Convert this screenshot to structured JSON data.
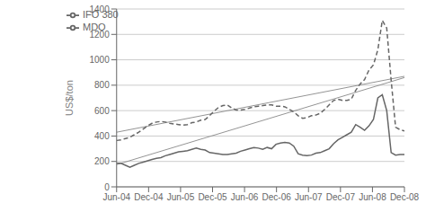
{
  "chart_data": {
    "type": "line",
    "title": "",
    "ylabel": "US$/ton",
    "xlim": [
      0,
      54
    ],
    "xticks": [
      {
        "value": 0,
        "label": "Jun-04"
      },
      {
        "value": 6,
        "label": "Dec-04"
      },
      {
        "value": 12,
        "label": "Jun-05"
      },
      {
        "value": 18,
        "label": "Dec-05"
      },
      {
        "value": 24,
        "label": "Jun-06"
      },
      {
        "value": 30,
        "label": "Dec-06"
      },
      {
        "value": 36,
        "label": "Jun-07"
      },
      {
        "value": 42,
        "label": "Dec-07"
      },
      {
        "value": 48,
        "label": "Jun-08"
      },
      {
        "value": 54,
        "label": "Dec-08"
      }
    ],
    "ylim": [
      0,
      1400
    ],
    "yticks": [
      0,
      200,
      400,
      600,
      800,
      1000,
      1200,
      1400
    ],
    "grid": true,
    "legend": "upper left",
    "series": [
      {
        "x": [
          0,
          54
        ],
        "values": [
          175,
          860
        ],
        "color": "#888888",
        "line_style": "solid"
      },
      {
        "x": [
          0,
          54
        ],
        "values": [
          430,
          870
        ],
        "color": "#888888",
        "line_style": "solid"
      },
      {
        "name": "IFO 380",
        "color": "#666666",
        "line_style": "solid",
        "x": [
          0,
          0.830769,
          1.661538,
          2.492308,
          3.323077,
          4.153846,
          4.984615,
          5.815385,
          6.646154,
          7.476923,
          8.307692,
          9.138462,
          9.969231,
          10.8,
          11.630769,
          12.461538,
          13.292308,
          14.123077,
          14.953846,
          15.784615,
          16.615385,
          17.446154,
          18.276923,
          19.107692,
          19.938462,
          20.769231,
          21.6,
          22.430769,
          23.261538,
          24.092308,
          24.923077,
          25.753846,
          26.584615,
          27.415385,
          28.246154,
          29.076923,
          29.907692,
          30.738462,
          31.569231,
          32.4,
          33.230769,
          34.061538,
          34.892308,
          35.723077,
          36.553846,
          37.384615,
          38.215385,
          39.046154,
          39.876923,
          40.707692,
          41.538462,
          42.369231,
          43.2,
          44.030769,
          44.861538,
          45.692308,
          46.523077,
          47.353846,
          48.184615,
          49.015385,
          49.846154,
          50.676923,
          51.507692,
          52.338462,
          53.169231,
          54
        ],
        "values": [
          185,
          185,
          170,
          155,
          170,
          185,
          195,
          205,
          215,
          225,
          230,
          245,
          255,
          265,
          275,
          280,
          285,
          295,
          305,
          295,
          290,
          270,
          265,
          260,
          255,
          255,
          260,
          265,
          280,
          290,
          300,
          310,
          305,
          295,
          310,
          300,
          335,
          345,
          350,
          345,
          320,
          260,
          250,
          245,
          250,
          265,
          270,
          285,
          300,
          340,
          370,
          390,
          410,
          430,
          490,
          470,
          445,
          480,
          530,
          700,
          725,
          600,
          270,
          250,
          255,
          255
        ]
      },
      {
        "name": "MDO",
        "color": "#666666",
        "line_style": "dashed",
        "x": [
          0,
          0.830769,
          1.661538,
          2.492308,
          3.323077,
          4.153846,
          4.984615,
          5.815385,
          6.646154,
          7.476923,
          8.307692,
          9.138462,
          9.969231,
          10.8,
          11.630769,
          12.461538,
          13.292308,
          14.123077,
          14.953846,
          15.784615,
          16.615385,
          17.446154,
          18.276923,
          19.107692,
          19.938462,
          20.769231,
          21.6,
          22.430769,
          23.261538,
          24.092308,
          24.923077,
          25.753846,
          26.584615,
          27.415385,
          28.246154,
          29.076923,
          29.907692,
          30.738462,
          31.569231,
          32.4,
          33.230769,
          34.061538,
          34.892308,
          35.723077,
          36.553846,
          37.384615,
          38.215385,
          39.046154,
          39.876923,
          40.707692,
          41.538462,
          42.369231,
          43.2,
          44.030769,
          44.861538,
          45.692308,
          46.523077,
          47.353846,
          48.184615,
          49.015385,
          49.846154,
          50.676923,
          51.507692,
          52.338462,
          53.169231,
          54
        ],
        "values": [
          365,
          370,
          380,
          390,
          410,
          430,
          455,
          480,
          500,
          510,
          515,
          510,
          500,
          495,
          490,
          485,
          490,
          505,
          510,
          525,
          530,
          560,
          595,
          625,
          640,
          645,
          620,
          605,
          605,
          610,
          620,
          630,
          635,
          640,
          645,
          645,
          635,
          635,
          630,
          610,
          590,
          560,
          540,
          545,
          560,
          565,
          580,
          610,
          645,
          680,
          690,
          680,
          680,
          690,
          760,
          810,
          845,
          920,
          960,
          1080,
          1310,
          1250,
          840,
          470,
          450,
          440
        ]
      }
    ]
  }
}
